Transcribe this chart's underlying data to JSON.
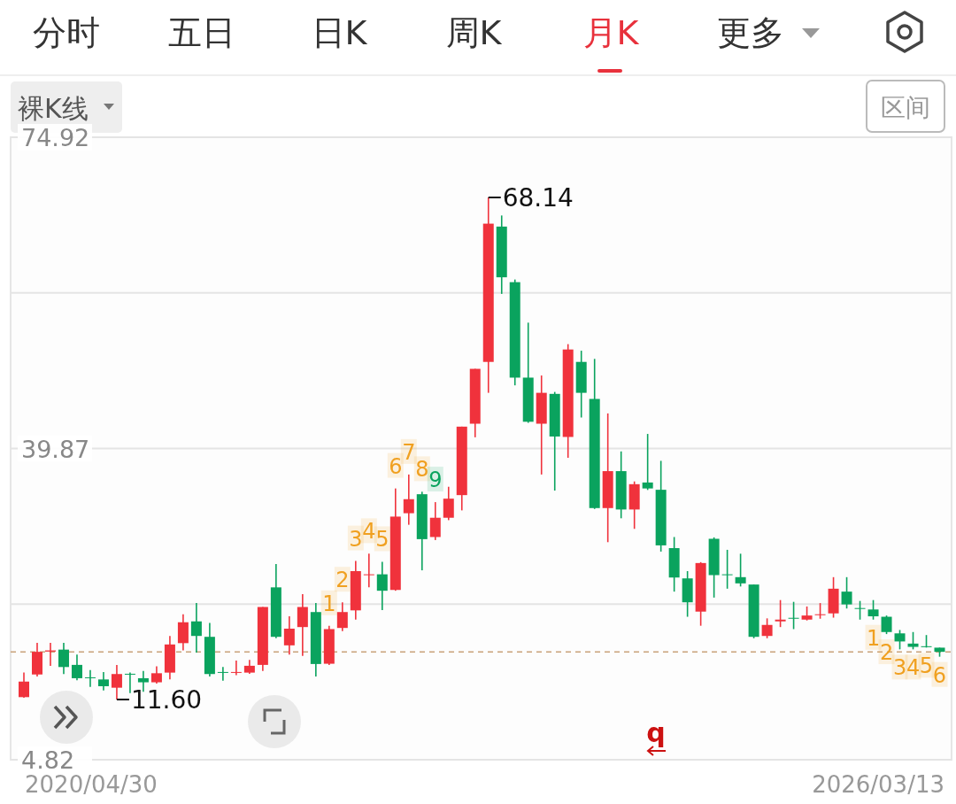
{
  "chart_data": {
    "type": "candlestick",
    "categories": [
      null,
      null,
      null,
      null,
      null,
      null,
      null,
      null,
      null,
      null,
      null,
      null,
      null,
      null,
      null,
      null,
      null,
      null,
      null,
      null,
      null,
      null,
      null,
      null,
      null,
      null,
      null,
      null,
      null,
      null,
      null,
      null,
      null,
      null,
      null,
      null,
      null,
      null,
      null,
      null,
      null,
      null,
      null,
      null,
      null,
      null,
      null,
      null,
      null,
      null,
      null,
      null,
      null,
      null,
      null,
      null,
      null,
      null,
      null,
      null,
      null,
      null,
      null,
      null,
      null,
      null,
      null,
      null,
      null,
      null
    ],
    "ohlc": [
      [
        11.87,
        14.63,
        11.8,
        13.62
      ],
      [
        14.42,
        17.99,
        14.19,
        16.97
      ],
      [
        17.0,
        17.99,
        15.4,
        17.13
      ],
      [
        17.22,
        17.99,
        14.47,
        15.26
      ],
      [
        15.5,
        16.65,
        13.77,
        14.0
      ],
      [
        14.1,
        14.92,
        13.03,
        14.0
      ],
      [
        13.86,
        14.7,
        12.62,
        13.1
      ],
      [
        12.93,
        15.5,
        11.6,
        14.47
      ],
      [
        14.5,
        14.63,
        12.33,
        14.4
      ],
      [
        14.0,
        14.82,
        12.47,
        13.54
      ],
      [
        13.54,
        15.35,
        13.4,
        14.56
      ],
      [
        14.63,
        18.76,
        13.86,
        17.8
      ],
      [
        17.95,
        21.2,
        17.13,
        20.3
      ],
      [
        20.4,
        22.46,
        16.88,
        18.76
      ],
      [
        18.66,
        20.23,
        14.19,
        14.47
      ],
      [
        14.7,
        15.26,
        13.72,
        14.6
      ],
      [
        14.6,
        15.98,
        14.34,
        14.7
      ],
      [
        14.63,
        16.07,
        14.5,
        15.4
      ],
      [
        15.5,
        22.02,
        14.82,
        22.02
      ],
      [
        24.23,
        26.86,
        18.5,
        18.66
      ],
      [
        17.7,
        20.97,
        16.65,
        19.58
      ],
      [
        19.76,
        23.46,
        16.5,
        22.02
      ],
      [
        21.45,
        22.46,
        14.19,
        15.6
      ],
      [
        15.63,
        19.9,
        15.5,
        19.53
      ],
      [
        19.66,
        22.55,
        19.3,
        21.45
      ],
      [
        21.64,
        27.2,
        20.6,
        26.06
      ],
      [
        25.6,
        28.02,
        24.23,
        25.7
      ],
      [
        25.7,
        27.11,
        21.67,
        23.85
      ],
      [
        23.94,
        35.37,
        23.85,
        32.2
      ],
      [
        32.58,
        36.94,
        31.28,
        34.16
      ],
      [
        34.72,
        35.0,
        26.15,
        29.66
      ],
      [
        29.9,
        33.83,
        29.56,
        32.07
      ],
      [
        32.07,
        35.56,
        31.8,
        34.22
      ],
      [
        34.62,
        42.33,
        32.9,
        42.33
      ],
      [
        42.66,
        48.84,
        41.13,
        48.84
      ],
      [
        49.62,
        68.14,
        46.14,
        65.19
      ],
      [
        64.86,
        66.11,
        57.28,
        59.15
      ],
      [
        58.6,
        58.9,
        46.98,
        47.85
      ],
      [
        47.85,
        54.04,
        42.76,
        42.88
      ],
      [
        42.66,
        48.09,
        36.94,
        46.14
      ],
      [
        46.02,
        46.24,
        35.13,
        41.22
      ],
      [
        41.17,
        51.62,
        38.82,
        51.02
      ],
      [
        49.62,
        50.88,
        43.36,
        46.14
      ],
      [
        45.45,
        49.96,
        33.06,
        33.16
      ],
      [
        33.16,
        43.82,
        29.32,
        37.32
      ],
      [
        37.32,
        39.54,
        32.01,
        33.0
      ],
      [
        33.0,
        36.16,
        30.82,
        35.85
      ],
      [
        36.04,
        41.51,
        35.2,
        35.37
      ],
      [
        35.22,
        38.48,
        28.26,
        28.96
      ],
      [
        28.65,
        29.9,
        23.75,
        25.34
      ],
      [
        25.24,
        26.06,
        20.92,
        22.55
      ],
      [
        21.5,
        27.07,
        19.91,
        26.97
      ],
      [
        29.7,
        29.86,
        23.08,
        25.61
      ],
      [
        25.7,
        28.46,
        24.08,
        25.6
      ],
      [
        25.38,
        28.02,
        24.33,
        24.68
      ],
      [
        24.55,
        24.55,
        18.5,
        18.66
      ],
      [
        18.76,
        20.74,
        18.5,
        20.0
      ],
      [
        20.4,
        22.8,
        19.76,
        20.6
      ],
      [
        20.8,
        22.6,
        19.53,
        20.7
      ],
      [
        20.6,
        22.08,
        20.5,
        21.06
      ],
      [
        21.1,
        22.46,
        20.7,
        21.2
      ],
      [
        21.3,
        25.38,
        20.82,
        24.08
      ],
      [
        23.75,
        25.38,
        21.85,
        22.31
      ],
      [
        21.9,
        22.7,
        20.6,
        21.8
      ],
      [
        21.74,
        22.8,
        20.6,
        20.97
      ],
      [
        20.92,
        21.06,
        18.97,
        19.2
      ],
      [
        19.05,
        19.43,
        17.25,
        18.14
      ],
      [
        17.9,
        19.2,
        17.25,
        17.53
      ],
      [
        17.6,
        18.86,
        17.45,
        17.5
      ],
      [
        17.44,
        17.44,
        16.42,
        16.97
      ]
    ],
    "colors": [
      "#f0323c",
      "#f0323c",
      "#f0323c",
      "#0aa35e",
      "#0aa35e",
      "#0aa35e",
      "#0aa35e",
      "#f0323c",
      "#0aa35e",
      "#0aa35e",
      "#f0323c",
      "#f0323c",
      "#f0323c",
      "#0aa35e",
      "#0aa35e",
      "#0aa35e",
      "#f0323c",
      "#f0323c",
      "#f0323c",
      "#0aa35e",
      "#f0323c",
      "#f0323c",
      "#0aa35e",
      "#f0323c",
      "#f0323c",
      "#f0323c",
      "#f0323c",
      "#0aa35e",
      "#f0323c",
      "#f0323c",
      "#0aa35e",
      "#f0323c",
      "#f0323c",
      "#f0323c",
      "#f0323c",
      "#f0323c",
      "#0aa35e",
      "#0aa35e",
      "#0aa35e",
      "#f0323c",
      "#0aa35e",
      "#f0323c",
      "#0aa35e",
      "#0aa35e",
      "#f0323c",
      "#0aa35e",
      "#f0323c",
      "#0aa35e",
      "#0aa35e",
      "#0aa35e",
      "#0aa35e",
      "#f0323c",
      "#0aa35e",
      "#0aa35e",
      "#0aa35e",
      "#0aa35e",
      "#f0323c",
      "#f0323c",
      "#0aa35e",
      "#f0323c",
      "#f0323c",
      "#f0323c",
      "#0aa35e",
      "#0aa35e",
      "#0aa35e",
      "#0aa35e",
      "#0aa35e",
      "#0aa35e",
      "#0aa35e",
      "#0aa35e"
    ],
    "ylim": [
      4.82,
      74.92
    ],
    "yticks": [
      4.82,
      {
        "value": 22.345,
        "label": null
      },
      39.87,
      {
        "value": 57.395,
        "label": null
      },
      74.92
    ],
    "grid": "y",
    "ref_lines": [
      {
        "axis": "y",
        "value": 16.97,
        "label": null,
        "color": "#c9a27a",
        "line_style": "dashed"
      }
    ],
    "annotations": [
      "分时",
      "五日",
      "日K",
      "周K",
      "月K",
      "更多",
      "裸K线",
      "区间",
      "q",
      "68.14",
      "11.60",
      "1",
      "2",
      "3",
      "4",
      "5",
      "6",
      "7",
      "8",
      "9",
      "1",
      "2",
      "3",
      "4",
      "5",
      "6",
      "2020/04/30",
      "2026/03/13"
    ]
  }
}
